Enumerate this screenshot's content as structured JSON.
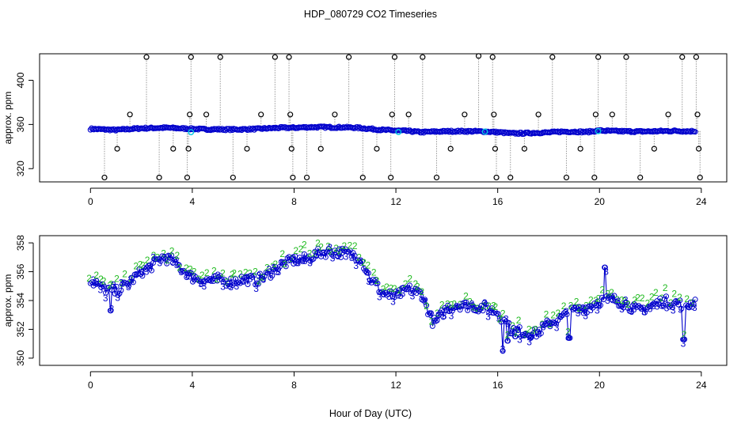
{
  "chart_data": [
    {
      "type": "scatter",
      "panel": "top",
      "title": "HDP_080729  CO2 Timeseries",
      "ylabel": "approx. ppm",
      "xlim": [
        -2.0,
        25.0
      ],
      "ylim": [
        308,
        424
      ],
      "xticks": [
        0,
        4,
        8,
        12,
        16,
        20,
        24
      ],
      "yticks": [
        320,
        360,
        400
      ],
      "grid": false,
      "series_colors": {
        "main": "#0000cc",
        "highlight": "#00c8e0",
        "spikes": "#000000",
        "drop_lines": "#999999"
      },
      "main_trace": {
        "x": [
          0,
          0.5,
          1,
          1.5,
          2,
          2.5,
          3,
          3.5,
          4,
          4.5,
          5,
          5.5,
          6,
          6.5,
          7,
          7.5,
          8,
          8.5,
          9,
          9.5,
          10,
          10.5,
          11,
          11.5,
          12,
          12.5,
          13,
          13.5,
          14,
          14.5,
          15,
          15.5,
          16,
          16.5,
          17,
          17.5,
          18,
          18.5,
          19,
          19.5,
          20,
          20.5,
          21,
          21.5,
          22,
          22.5,
          23,
          23.5,
          23.8
        ],
        "y": [
          356,
          355.5,
          355,
          355.8,
          356.5,
          356.8,
          357,
          356.5,
          356,
          355.6,
          355.6,
          355.4,
          355.6,
          355.9,
          356.5,
          357,
          357,
          357.5,
          357.6,
          357.4,
          357.4,
          357,
          356,
          355,
          354.5,
          354,
          353,
          353.5,
          353.8,
          353.9,
          353.8,
          353.6,
          353,
          352,
          352,
          352.5,
          352.7,
          353.5,
          353.5,
          353.2,
          354.5,
          354,
          353.8,
          353.6,
          353.7,
          354,
          354.2,
          353.8,
          354
        ]
      },
      "highlight_points": [
        {
          "x": 3.95,
          "y": 353
        },
        {
          "x": 12.1,
          "y": 353.2
        },
        {
          "x": 15.5,
          "y": 353.5
        },
        {
          "x": 19.95,
          "y": 354
        }
      ],
      "spikes": [
        {
          "x": 0.55,
          "y": 312
        },
        {
          "x": 1.05,
          "y": 338
        },
        {
          "x": 1.55,
          "y": 369
        },
        {
          "x": 2.2,
          "y": 421
        },
        {
          "x": 2.7,
          "y": 312
        },
        {
          "x": 3.25,
          "y": 338
        },
        {
          "x": 3.8,
          "y": 312
        },
        {
          "x": 3.85,
          "y": 338
        },
        {
          "x": 3.9,
          "y": 369
        },
        {
          "x": 3.95,
          "y": 421
        },
        {
          "x": 4.55,
          "y": 369
        },
        {
          "x": 5.1,
          "y": 421
        },
        {
          "x": 5.6,
          "y": 312
        },
        {
          "x": 6.15,
          "y": 338
        },
        {
          "x": 6.7,
          "y": 369
        },
        {
          "x": 7.25,
          "y": 421
        },
        {
          "x": 7.8,
          "y": 421
        },
        {
          "x": 7.85,
          "y": 369
        },
        {
          "x": 7.9,
          "y": 338
        },
        {
          "x": 7.95,
          "y": 312
        },
        {
          "x": 8.5,
          "y": 312
        },
        {
          "x": 9.05,
          "y": 338
        },
        {
          "x": 9.6,
          "y": 369
        },
        {
          "x": 10.15,
          "y": 421
        },
        {
          "x": 10.7,
          "y": 312
        },
        {
          "x": 11.25,
          "y": 338
        },
        {
          "x": 11.8,
          "y": 312
        },
        {
          "x": 11.85,
          "y": 369
        },
        {
          "x": 11.95,
          "y": 421
        },
        {
          "x": 12.5,
          "y": 369
        },
        {
          "x": 13.05,
          "y": 421
        },
        {
          "x": 13.6,
          "y": 312
        },
        {
          "x": 14.15,
          "y": 338
        },
        {
          "x": 14.7,
          "y": 369
        },
        {
          "x": 15.25,
          "y": 422
        },
        {
          "x": 15.8,
          "y": 421
        },
        {
          "x": 15.85,
          "y": 369
        },
        {
          "x": 15.9,
          "y": 338
        },
        {
          "x": 15.95,
          "y": 312
        },
        {
          "x": 16.5,
          "y": 312
        },
        {
          "x": 17.05,
          "y": 338
        },
        {
          "x": 17.6,
          "y": 369
        },
        {
          "x": 18.15,
          "y": 421
        },
        {
          "x": 18.7,
          "y": 312
        },
        {
          "x": 19.25,
          "y": 338
        },
        {
          "x": 19.8,
          "y": 312
        },
        {
          "x": 19.85,
          "y": 369
        },
        {
          "x": 19.95,
          "y": 421
        },
        {
          "x": 20.5,
          "y": 369
        },
        {
          "x": 21.05,
          "y": 421
        },
        {
          "x": 21.6,
          "y": 312
        },
        {
          "x": 22.15,
          "y": 338
        },
        {
          "x": 22.7,
          "y": 369
        },
        {
          "x": 23.25,
          "y": 421
        },
        {
          "x": 23.8,
          "y": 421
        },
        {
          "x": 23.85,
          "y": 369
        },
        {
          "x": 23.9,
          "y": 338
        },
        {
          "x": 23.95,
          "y": 312
        }
      ]
    },
    {
      "type": "scatter",
      "panel": "bottom",
      "xlabel": "Hour of Day (UTC)",
      "ylabel": "approx. ppm",
      "xlim": [
        -2.0,
        25.0
      ],
      "ylim": [
        349.5,
        358.5
      ],
      "xticks": [
        0,
        4,
        8,
        12,
        16,
        20,
        24
      ],
      "yticks": [
        350,
        352,
        354,
        356,
        358
      ],
      "grid": false,
      "series": [
        {
          "name": "line",
          "color": "#0000cc"
        },
        {
          "name": "circles",
          "color": "#0000cc"
        },
        {
          "name": "label-2",
          "label": "2",
          "color": "#22bb22"
        },
        {
          "name": "label-3",
          "label": "3",
          "color": "#0000cc"
        }
      ],
      "trend": {
        "x": [
          0,
          0.3,
          0.6,
          1,
          1.5,
          2,
          2.5,
          2.8,
          3.2,
          3.6,
          4,
          4.5,
          5,
          5.5,
          6,
          6.5,
          7,
          7.5,
          8,
          8.5,
          9,
          9.5,
          10,
          10.3,
          10.6,
          11,
          11.5,
          12,
          12.5,
          13,
          13.5,
          14,
          14.5,
          15,
          15.5,
          16,
          16.5,
          17,
          17.5,
          18,
          18.5,
          19,
          19.5,
          20,
          20.5,
          21,
          21.5,
          22,
          22.5,
          23,
          23.5,
          23.8
        ],
        "y": [
          355.4,
          355,
          354.8,
          354.6,
          355.2,
          356,
          356.5,
          357,
          356.8,
          356.2,
          355.6,
          355.4,
          355.4,
          355.3,
          355.5,
          355.4,
          355.8,
          356.5,
          356.8,
          356.9,
          357.3,
          357.4,
          357.3,
          357.2,
          357,
          355.5,
          354.5,
          354.3,
          354.8,
          354.5,
          352.3,
          353.5,
          353.7,
          353.6,
          353.5,
          353.2,
          352,
          351.8,
          351.7,
          352.4,
          352.8,
          353.3,
          353.5,
          354,
          354.1,
          353.8,
          353.3,
          353.6,
          354,
          353.8,
          353.7,
          354
        ]
      },
      "dips": [
        {
          "x": 16.2,
          "y": 350.5
        },
        {
          "x": 16.4,
          "y": 351.2
        },
        {
          "x": 16.7,
          "y": 351.5
        },
        {
          "x": 17.3,
          "y": 351.4
        },
        {
          "x": 18.8,
          "y": 351.4
        },
        {
          "x": 23.3,
          "y": 351.3
        },
        {
          "x": 20.2,
          "y": 356.3
        },
        {
          "x": 0.8,
          "y": 353.3
        }
      ]
    }
  ],
  "labels": {
    "title": "HDP_080729  CO2 Timeseries",
    "ylabel_top": "approx. ppm",
    "ylabel_bottom": "approx. ppm",
    "xlabel": "Hour of Day (UTC)"
  }
}
